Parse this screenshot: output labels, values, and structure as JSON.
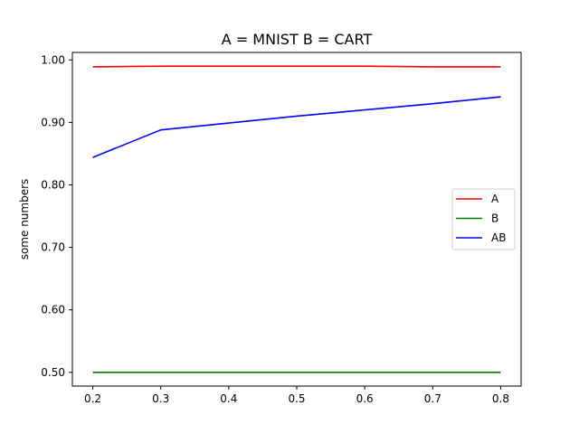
{
  "chart_data": {
    "type": "line",
    "title": "A = MNIST B = CART",
    "xlabel": "",
    "ylabel": "some numbers",
    "x": [
      0.2,
      0.3,
      0.4,
      0.5,
      0.6,
      0.7,
      0.8
    ],
    "xlim": [
      0.17,
      0.83
    ],
    "ylim": [
      0.478,
      1.012
    ],
    "xticks": [
      "0.2",
      "0.3",
      "0.4",
      "0.5",
      "0.6",
      "0.7",
      "0.8"
    ],
    "yticks": [
      "0.50",
      "0.60",
      "0.70",
      "0.80",
      "0.90",
      "1.00"
    ],
    "grid": false,
    "legend_position": "center-right",
    "series": [
      {
        "name": "A",
        "color": "#ff0000",
        "values": [
          0.989,
          0.99,
          0.99,
          0.99,
          0.99,
          0.989,
          0.989
        ]
      },
      {
        "name": "B",
        "color": "#008000",
        "values": [
          0.5,
          0.5,
          0.5,
          0.5,
          0.5,
          0.5,
          0.5
        ]
      },
      {
        "name": "AB",
        "color": "#0000ff",
        "values": [
          0.844,
          0.888,
          0.899,
          0.91,
          0.92,
          0.93,
          0.941
        ]
      }
    ]
  }
}
